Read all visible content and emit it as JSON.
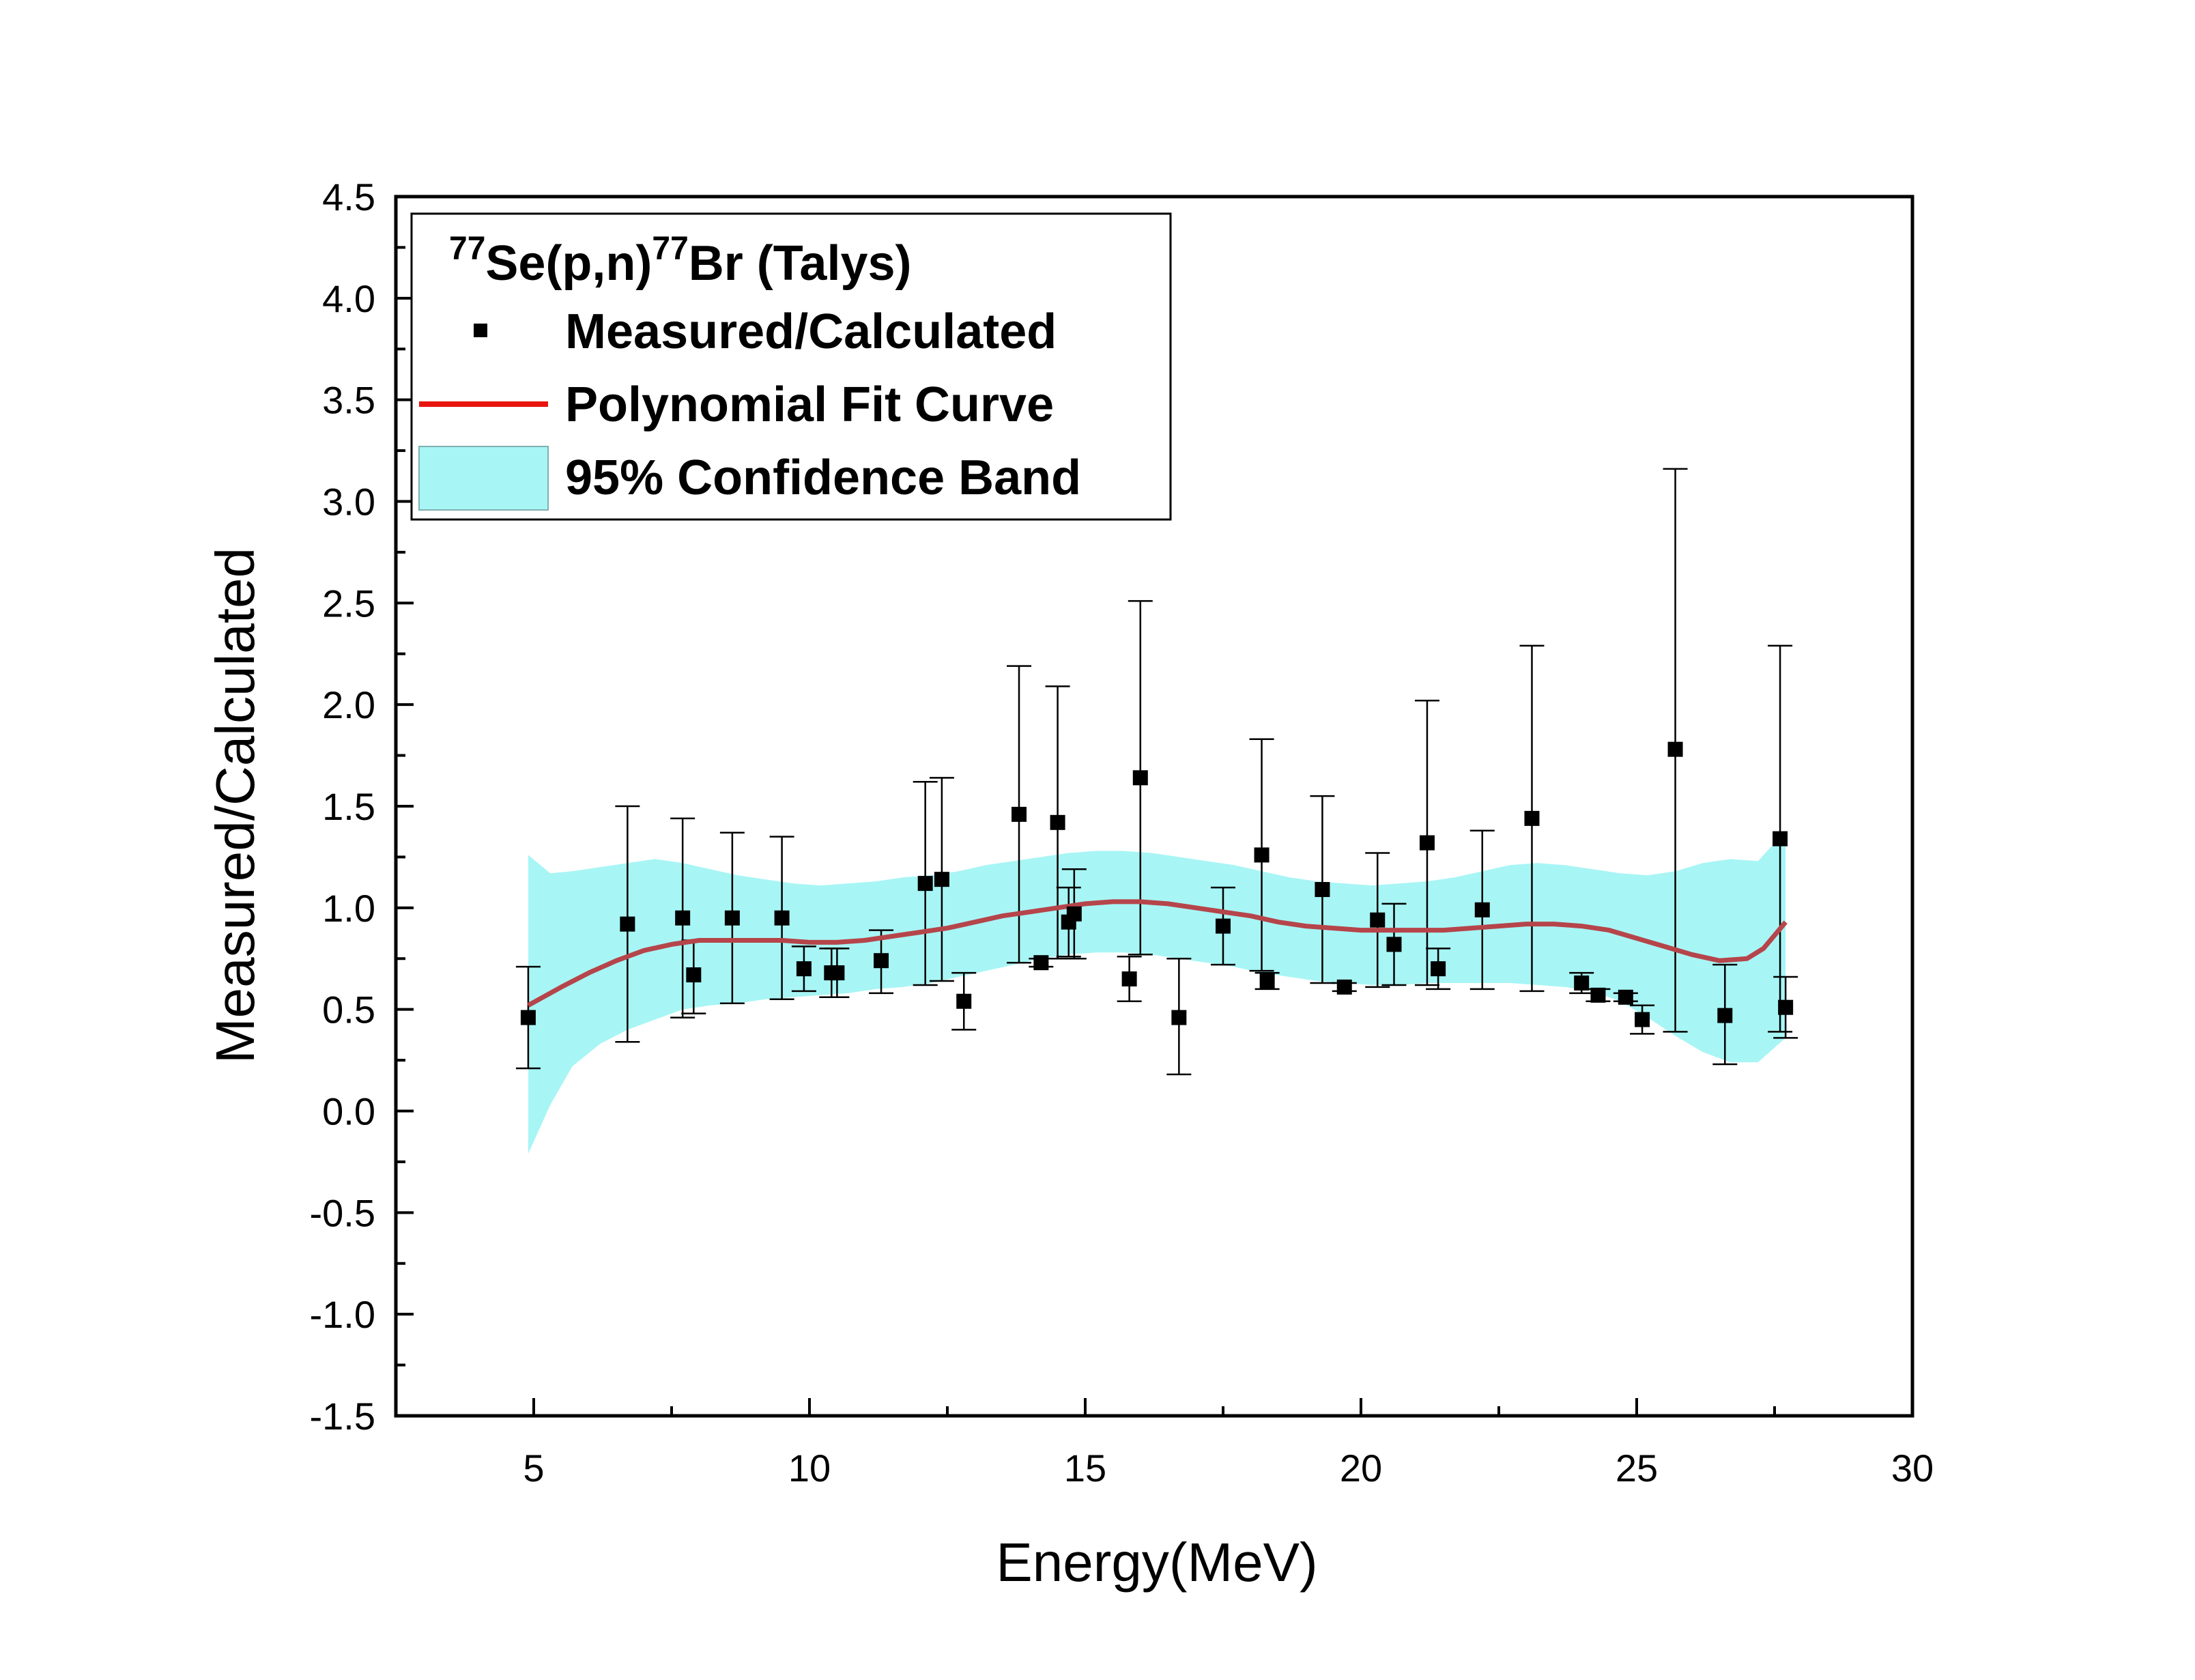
{
  "chart_data": {
    "type": "scatter",
    "title": "",
    "xlabel": "Energy(MeV)",
    "ylabel": "Measured/Calculated",
    "xlim": [
      2.5,
      30
    ],
    "ylim": [
      -1.5,
      4.5
    ],
    "xticks": [
      5,
      10,
      15,
      20,
      25,
      30
    ],
    "xtick_labels": [
      "5",
      "10",
      "15",
      "20",
      "25",
      "30"
    ],
    "yticks": [
      -1.5,
      -1.0,
      -0.5,
      0.0,
      0.5,
      1.0,
      1.5,
      2.0,
      2.5,
      3.0,
      3.5,
      4.0,
      4.5
    ],
    "ytick_labels": [
      "-1.5",
      "-1.0",
      "-0.5",
      "0.0",
      "0.5",
      "1.0",
      "1.5",
      "2.0",
      "2.5",
      "3.0",
      "3.5",
      "4.0",
      "4.5"
    ],
    "grid": false,
    "legend": {
      "position": "top-left",
      "heading_sup1": "77",
      "heading_main1": "Se(p,n)",
      "heading_sup2": "77",
      "heading_main2": "Br (Talys)",
      "entries": [
        "Measured/Calculated",
        "Polynomial Fit Curve",
        "95% Confidence Band"
      ]
    },
    "colors": {
      "points": "#000000",
      "fit": "#b5454a",
      "fit_legend": "#e8150f",
      "band": "#a8f5f5",
      "band_edge": "#7fe0e0",
      "errorbar": "#000000"
    },
    "series": [
      {
        "name": "Measured/Calculated",
        "x": [
          4.9,
          6.7,
          7.7,
          7.9,
          8.6,
          9.5,
          9.9,
          10.4,
          10.5,
          11.3,
          12.1,
          12.4,
          12.8,
          13.8,
          14.2,
          14.5,
          14.7,
          14.8,
          15.8,
          16.0,
          16.7,
          17.5,
          18.2,
          18.3,
          19.3,
          19.7,
          20.3,
          20.6,
          21.2,
          21.4,
          22.2,
          23.1,
          24.0,
          24.3,
          24.8,
          25.1,
          25.7,
          26.6,
          27.6,
          27.7
        ],
        "y": [
          0.46,
          0.92,
          0.95,
          0.67,
          0.95,
          0.95,
          0.7,
          0.68,
          0.68,
          0.74,
          1.12,
          1.14,
          0.54,
          1.46,
          0.73,
          1.42,
          0.93,
          0.97,
          0.65,
          1.64,
          0.46,
          0.91,
          1.26,
          0.64,
          1.09,
          0.61,
          0.94,
          0.82,
          1.32,
          0.7,
          0.99,
          1.44,
          0.63,
          0.57,
          0.56,
          0.45,
          1.78,
          0.47,
          1.34,
          0.51
        ],
        "y_high": [
          0.71,
          1.5,
          1.44,
          0.84,
          1.37,
          1.35,
          0.81,
          0.8,
          0.8,
          0.89,
          1.62,
          1.64,
          0.68,
          2.19,
          0.75,
          2.09,
          1.1,
          1.19,
          0.76,
          2.51,
          0.75,
          1.1,
          1.83,
          0.68,
          1.55,
          0.63,
          1.27,
          1.02,
          2.02,
          0.8,
          1.38,
          2.29,
          0.68,
          0.6,
          0.58,
          0.52,
          3.16,
          0.72,
          2.29,
          0.66
        ],
        "y_low": [
          0.21,
          0.34,
          0.46,
          0.48,
          0.53,
          0.55,
          0.59,
          0.56,
          0.56,
          0.58,
          0.62,
          0.64,
          0.4,
          0.73,
          0.71,
          0.75,
          0.76,
          0.75,
          0.54,
          0.77,
          0.18,
          0.72,
          0.69,
          0.6,
          0.63,
          0.59,
          0.61,
          0.62,
          0.62,
          0.6,
          0.6,
          0.59,
          0.58,
          0.54,
          0.54,
          0.38,
          0.39,
          0.23,
          0.39,
          0.36
        ]
      },
      {
        "name": "Polynomial Fit Curve",
        "x": [
          4.9,
          5.5,
          6.0,
          6.5,
          7.0,
          7.5,
          8.0,
          8.5,
          9.0,
          9.5,
          10.0,
          10.5,
          11.0,
          11.5,
          12.0,
          12.5,
          13.0,
          13.5,
          14.0,
          14.5,
          15.0,
          15.5,
          16.0,
          16.5,
          17.0,
          17.5,
          18.0,
          18.5,
          19.0,
          19.5,
          20.0,
          20.5,
          21.0,
          21.5,
          22.0,
          22.5,
          23.0,
          23.5,
          24.0,
          24.5,
          25.0,
          25.5,
          26.0,
          26.5,
          27.0,
          27.3,
          27.7
        ],
        "y": [
          0.52,
          0.61,
          0.68,
          0.74,
          0.79,
          0.82,
          0.84,
          0.84,
          0.84,
          0.84,
          0.83,
          0.83,
          0.84,
          0.86,
          0.88,
          0.9,
          0.93,
          0.96,
          0.98,
          1.0,
          1.02,
          1.03,
          1.03,
          1.02,
          1.0,
          0.98,
          0.96,
          0.93,
          0.91,
          0.9,
          0.89,
          0.89,
          0.89,
          0.89,
          0.9,
          0.91,
          0.92,
          0.92,
          0.91,
          0.89,
          0.85,
          0.81,
          0.77,
          0.74,
          0.75,
          0.8,
          0.93
        ]
      },
      {
        "name": "95% Confidence Band",
        "x": [
          4.9,
          5.3,
          5.7,
          6.2,
          6.7,
          7.2,
          7.7,
          8.2,
          8.7,
          9.2,
          9.7,
          10.2,
          10.7,
          11.2,
          11.7,
          12.2,
          12.7,
          13.2,
          13.7,
          14.2,
          14.7,
          15.2,
          15.7,
          16.2,
          16.7,
          17.2,
          17.7,
          18.2,
          18.7,
          19.2,
          19.7,
          20.2,
          20.7,
          21.2,
          21.7,
          22.2,
          22.7,
          23.2,
          23.7,
          24.2,
          24.7,
          25.2,
          25.7,
          26.2,
          26.7,
          27.2,
          27.7
        ],
        "upper": [
          1.26,
          1.17,
          1.18,
          1.2,
          1.22,
          1.24,
          1.22,
          1.19,
          1.16,
          1.14,
          1.12,
          1.11,
          1.12,
          1.13,
          1.15,
          1.16,
          1.18,
          1.21,
          1.23,
          1.25,
          1.27,
          1.28,
          1.28,
          1.27,
          1.25,
          1.23,
          1.21,
          1.18,
          1.15,
          1.13,
          1.12,
          1.11,
          1.12,
          1.13,
          1.15,
          1.18,
          1.21,
          1.22,
          1.21,
          1.19,
          1.17,
          1.16,
          1.18,
          1.22,
          1.24,
          1.23,
          1.38
        ],
        "lower": [
          -0.21,
          0.03,
          0.22,
          0.33,
          0.4,
          0.45,
          0.5,
          0.52,
          0.53,
          0.55,
          0.56,
          0.57,
          0.58,
          0.6,
          0.61,
          0.63,
          0.66,
          0.69,
          0.72,
          0.75,
          0.77,
          0.78,
          0.78,
          0.77,
          0.75,
          0.73,
          0.71,
          0.68,
          0.66,
          0.64,
          0.63,
          0.62,
          0.62,
          0.63,
          0.63,
          0.63,
          0.63,
          0.62,
          0.61,
          0.59,
          0.54,
          0.46,
          0.37,
          0.29,
          0.24,
          0.24,
          0.36
        ]
      }
    ]
  }
}
